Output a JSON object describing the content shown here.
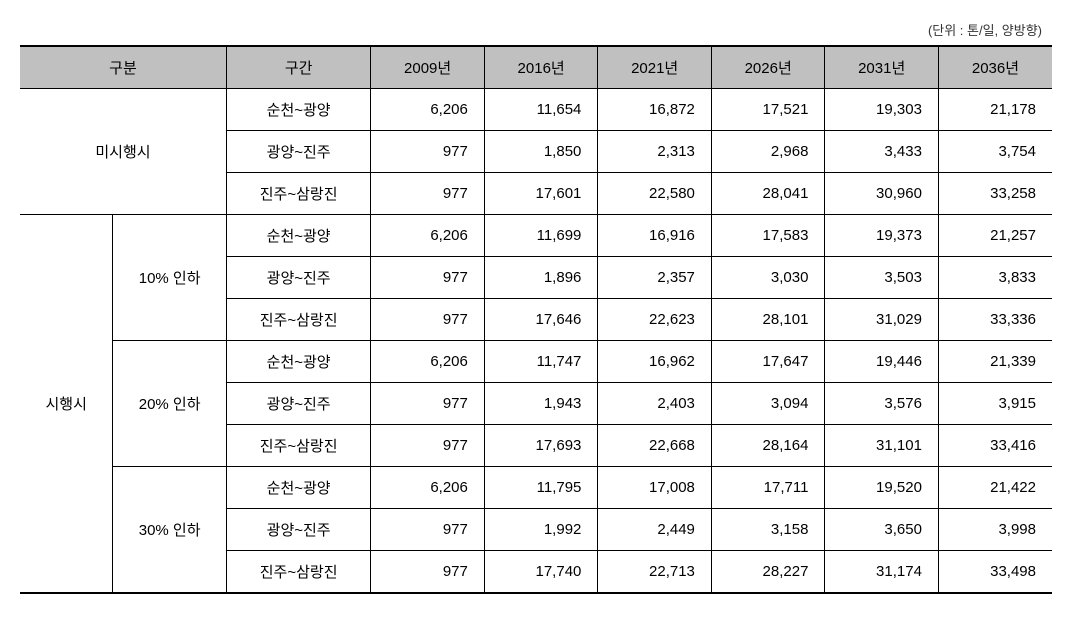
{
  "unit_label": "(단위 : 톤/일, 양방향)",
  "header": {
    "gubun": "구분",
    "section": "구간",
    "years": [
      "2009년",
      "2016년",
      "2021년",
      "2026년",
      "2031년",
      "2036년"
    ]
  },
  "categories": {
    "misihaeng": "미시행시",
    "sihaeng": "시행시",
    "discount10": "10% 인하",
    "discount20": "20% 인하",
    "discount30": "30% 인하"
  },
  "sections": {
    "s1": "순천~광양",
    "s2": "광양~진주",
    "s3": "진주~삼랑진"
  },
  "rows": [
    {
      "values": [
        "6,206",
        "11,654",
        "16,872",
        "17,521",
        "19,303",
        "21,178"
      ]
    },
    {
      "values": [
        "977",
        "1,850",
        "2,313",
        "2,968",
        "3,433",
        "3,754"
      ]
    },
    {
      "values": [
        "977",
        "17,601",
        "22,580",
        "28,041",
        "30,960",
        "33,258"
      ]
    },
    {
      "values": [
        "6,206",
        "11,699",
        "16,916",
        "17,583",
        "19,373",
        "21,257"
      ]
    },
    {
      "values": [
        "977",
        "1,896",
        "2,357",
        "3,030",
        "3,503",
        "3,833"
      ]
    },
    {
      "values": [
        "977",
        "17,646",
        "22,623",
        "28,101",
        "31,029",
        "33,336"
      ]
    },
    {
      "values": [
        "6,206",
        "11,747",
        "16,962",
        "17,647",
        "19,446",
        "21,339"
      ]
    },
    {
      "values": [
        "977",
        "1,943",
        "2,403",
        "3,094",
        "3,576",
        "3,915"
      ]
    },
    {
      "values": [
        "977",
        "17,693",
        "22,668",
        "28,164",
        "31,101",
        "33,416"
      ]
    },
    {
      "values": [
        "6,206",
        "11,795",
        "17,008",
        "17,711",
        "19,520",
        "21,422"
      ]
    },
    {
      "values": [
        "977",
        "1,992",
        "2,449",
        "3,158",
        "3,650",
        "3,998"
      ]
    },
    {
      "values": [
        "977",
        "17,740",
        "22,713",
        "28,227",
        "31,174",
        "33,498"
      ]
    }
  ]
}
